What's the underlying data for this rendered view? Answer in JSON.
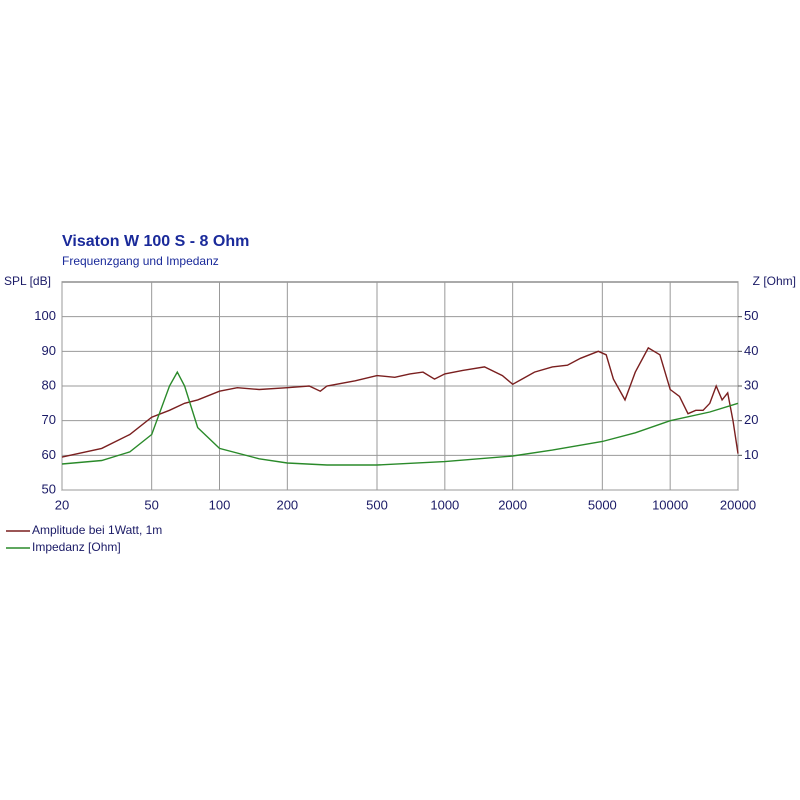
{
  "chart_data": {
    "type": "line",
    "title": "Visaton W 100 S - 8 Ohm",
    "subtitle": "Frequenzgang und Impedanz",
    "ylabel": "SPL [dB]",
    "y2label": "Z [Ohm]",
    "xscale": "log",
    "grid": true,
    "xlim": [
      20,
      20000
    ],
    "xticks": [
      20,
      50,
      100,
      200,
      500,
      1000,
      2000,
      5000,
      10000,
      20000
    ],
    "ylim": [
      50,
      110
    ],
    "yticks": [
      50,
      60,
      70,
      80,
      90,
      100
    ],
    "y2lim": [
      0,
      60
    ],
    "y2ticks": [
      10,
      20,
      30,
      40,
      50
    ],
    "series": [
      {
        "name": "Amplitude bei 1Watt, 1m",
        "color": "#7a1f1f",
        "x": [
          20,
          30,
          40,
          50,
          60,
          70,
          80,
          100,
          120,
          150,
          200,
          250,
          280,
          300,
          400,
          500,
          600,
          700,
          800,
          900,
          1000,
          1200,
          1500,
          1800,
          2000,
          2200,
          2500,
          3000,
          3500,
          4000,
          4800,
          5200,
          5600,
          6300,
          7000,
          8000,
          9000,
          10000,
          11000,
          12000,
          13000,
          14000,
          15000,
          16000,
          17000,
          18000,
          19000,
          20000
        ],
        "values": [
          59.5,
          62,
          66,
          71,
          73,
          75,
          76,
          78.5,
          79.5,
          79,
          79.5,
          80,
          78.5,
          80,
          81.5,
          83,
          82.5,
          83.5,
          84,
          82,
          83.5,
          84.5,
          85.5,
          83,
          80.5,
          82,
          84,
          85.5,
          86,
          88,
          90,
          89,
          82,
          76,
          84,
          91,
          89,
          79,
          77,
          72,
          73,
          73,
          75,
          80,
          76,
          78,
          70,
          60.5
        ]
      },
      {
        "name": "Impedanz [Ohm]",
        "color": "#2a8a2a",
        "axis": "y2",
        "x": [
          20,
          30,
          40,
          50,
          60,
          65,
          70,
          80,
          100,
          150,
          200,
          300,
          500,
          1000,
          2000,
          3000,
          5000,
          7000,
          10000,
          15000,
          20000
        ],
        "values": [
          7.5,
          8.5,
          11,
          16,
          30,
          34,
          30,
          18,
          12,
          9,
          7.8,
          7.2,
          7.2,
          8.2,
          9.8,
          11.5,
          14,
          16.5,
          20,
          22.5,
          25
        ]
      }
    ]
  }
}
